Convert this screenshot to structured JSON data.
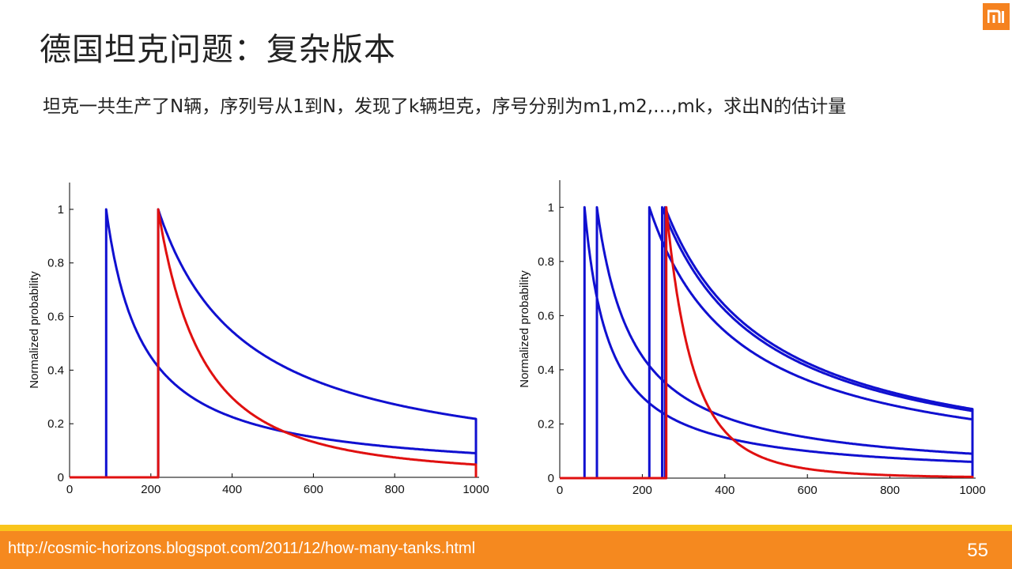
{
  "slide": {
    "title": "德国坦克问题：复杂版本",
    "subtitle": "坦克一共生产了N辆，序列号从1到N，发现了k辆坦克，序号分别为m1,m2,…,mk，求出N的估计量",
    "logo_icon": "mi-logo-icon",
    "footer_url": "http://cosmic-horizons.blogspot.com/2011/12/how-many-tanks.html",
    "page_number": "55",
    "accent_color": "#f5891f",
    "stripe_color": "#f9c51c"
  },
  "chart_data": [
    {
      "type": "line",
      "ylabel": "Normalized probability",
      "xlim": [
        0,
        1000
      ],
      "ylim": [
        0,
        1.1
      ],
      "x_ticks": [
        "0",
        "200",
        "400",
        "600",
        "800",
        "1000"
      ],
      "y_ticks": [
        "0",
        "0.2",
        "0.4",
        "0.6",
        "0.8",
        "1"
      ],
      "grid": false,
      "series": [
        {
          "color": "#1010d0",
          "start": 90,
          "exponent": 1,
          "end_value": 0.09
        },
        {
          "color": "#1010d0",
          "start": 218,
          "exponent": 1,
          "end_value": 0.218
        },
        {
          "color": "#e01010",
          "start": 218,
          "exponent": 2,
          "end_value": 0.0475
        }
      ]
    },
    {
      "type": "line",
      "ylabel": "Normalized probability",
      "xlim": [
        0,
        1000
      ],
      "ylim": [
        0,
        1.1
      ],
      "x_ticks": [
        "0",
        "200",
        "400",
        "600",
        "800",
        "1000"
      ],
      "y_ticks": [
        "0",
        "0.2",
        "0.4",
        "0.6",
        "0.8",
        "1"
      ],
      "grid": false,
      "series": [
        {
          "color": "#1010d0",
          "start": 60,
          "exponent": 1,
          "end_value": 0.06
        },
        {
          "color": "#1010d0",
          "start": 90,
          "exponent": 1,
          "end_value": 0.09
        },
        {
          "color": "#1010d0",
          "start": 217,
          "exponent": 1,
          "end_value": 0.217
        },
        {
          "color": "#1010d0",
          "start": 248,
          "exponent": 1,
          "end_value": 0.248
        },
        {
          "color": "#1010d0",
          "start": 255,
          "exponent": 1,
          "end_value": 0.255
        },
        {
          "color": "#e01010",
          "start": 258,
          "exponent": 4,
          "end_value": 0.0044
        }
      ]
    }
  ]
}
